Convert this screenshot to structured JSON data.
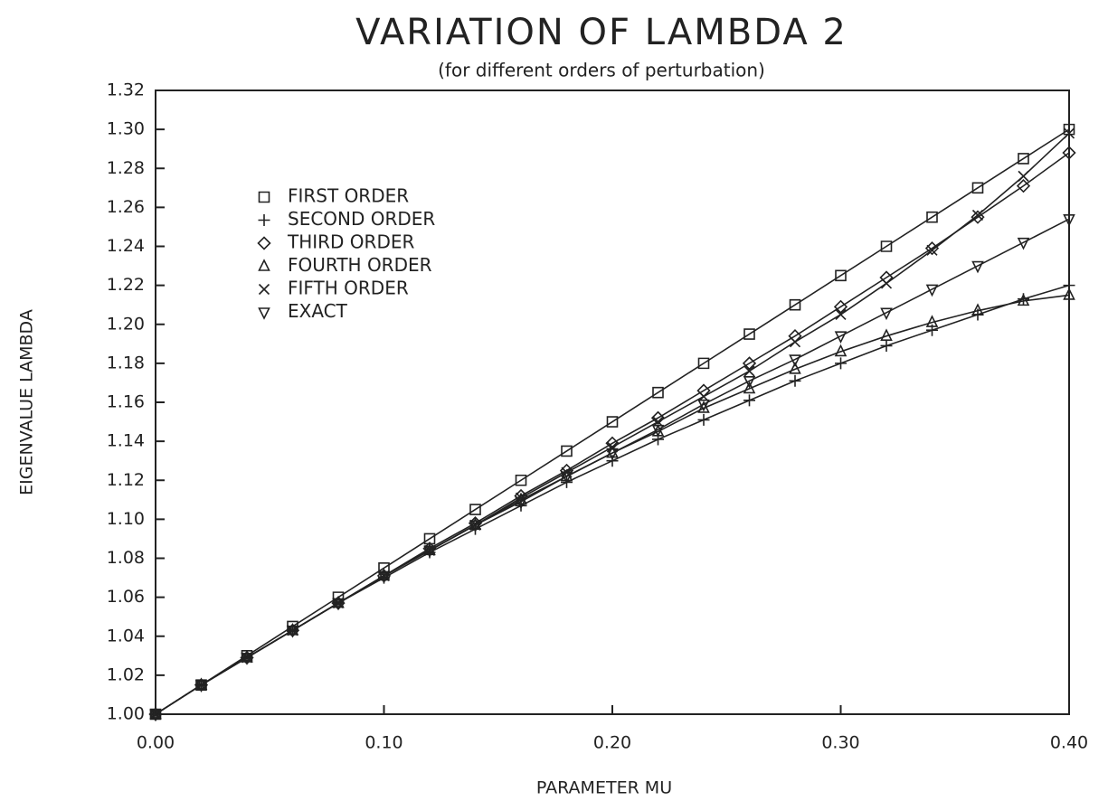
{
  "chart_data": {
    "type": "line",
    "title": "VARIATION OF LAMBDA 2",
    "subtitle": "(for different orders of perturbation)",
    "xlabel": "PARAMETER MU",
    "ylabel": "EIGENVALUE LAMBDA",
    "x": [
      0,
      0.02,
      0.04,
      0.06,
      0.08,
      0.1,
      0.12,
      0.14,
      0.16,
      0.18,
      0.2,
      0.22,
      0.24,
      0.26,
      0.28,
      0.3,
      0.32,
      0.34,
      0.36,
      0.38,
      0.4
    ],
    "series": [
      {
        "name": "FIRST ORDER",
        "marker": "square",
        "color": "#222222",
        "values": [
          1,
          1.015,
          1.03,
          1.045,
          1.06,
          1.075,
          1.09,
          1.105,
          1.12,
          1.135,
          1.15,
          1.165,
          1.18,
          1.195,
          1.21,
          1.225,
          1.24,
          1.255,
          1.27,
          1.285,
          1.3
        ]
      },
      {
        "name": "SECOND ORDER",
        "marker": "plus",
        "color": "#222222",
        "values": [
          1,
          1.015,
          1.029,
          1.043,
          1.057,
          1.07,
          1.083,
          1.095,
          1.107,
          1.119,
          1.13,
          1.141,
          1.151,
          1.161,
          1.171,
          1.18,
          1.189,
          1.197,
          1.205,
          1.213,
          1.22
        ]
      },
      {
        "name": "THIRD ORDER",
        "marker": "diamond",
        "color": "#222222",
        "values": [
          1,
          1.015,
          1.029,
          1.043,
          1.057,
          1.071,
          1.085,
          1.098,
          1.112,
          1.125,
          1.139,
          1.152,
          1.166,
          1.18,
          1.194,
          1.209,
          1.224,
          1.239,
          1.255,
          1.271,
          1.288
        ]
      },
      {
        "name": "FOURTH ORDER",
        "marker": "triangle",
        "color": "#222222",
        "values": [
          1,
          1.015,
          1.029,
          1.043,
          1.057,
          1.071,
          1.084,
          1.097,
          1.11,
          1.122,
          1.134,
          1.145,
          1.157,
          1.167,
          1.177,
          1.186,
          1.194,
          1.201,
          1.207,
          1.212,
          1.215
        ]
      },
      {
        "name": "FIFTH ORDER",
        "marker": "cross",
        "color": "#222222",
        "values": [
          1,
          1.015,
          1.029,
          1.043,
          1.057,
          1.071,
          1.084,
          1.097,
          1.111,
          1.124,
          1.137,
          1.15,
          1.163,
          1.176,
          1.191,
          1.205,
          1.221,
          1.238,
          1.256,
          1.276,
          1.298
        ]
      },
      {
        "name": "EXACT",
        "marker": "invtriangle",
        "color": "#222222",
        "values": [
          1,
          1.015,
          1.029,
          1.043,
          1.057,
          1.071,
          1.084,
          1.097,
          1.109,
          1.122,
          1.134,
          1.146,
          1.159,
          1.171,
          1.182,
          1.194,
          1.206,
          1.218,
          1.23,
          1.242,
          1.254
        ]
      }
    ],
    "xlim": [
      0,
      0.4
    ],
    "xticks": [
      {
        "value": 0,
        "label": "0.00"
      },
      {
        "value": 0.1,
        "label": "0.10"
      },
      {
        "value": 0.2,
        "label": "0.20"
      },
      {
        "value": 0.3,
        "label": "0.30"
      },
      {
        "value": 0.4,
        "label": "0.40"
      }
    ],
    "ylim": [
      1,
      1.32
    ],
    "yticks": [
      {
        "value": 1,
        "label": "1.00"
      },
      {
        "value": 1.02,
        "label": "1.02"
      },
      {
        "value": 1.04,
        "label": "1.04"
      },
      {
        "value": 1.06,
        "label": "1.06"
      },
      {
        "value": 1.08,
        "label": "1.08"
      },
      {
        "value": 1.1,
        "label": "1.10"
      },
      {
        "value": 1.12,
        "label": "1.12"
      },
      {
        "value": 1.14,
        "label": "1.14"
      },
      {
        "value": 1.16,
        "label": "1.16"
      },
      {
        "value": 1.18,
        "label": "1.18"
      },
      {
        "value": 1.2,
        "label": "1.20"
      },
      {
        "value": 1.22,
        "label": "1.22"
      },
      {
        "value": 1.24,
        "label": "1.24"
      },
      {
        "value": 1.26,
        "label": "1.26"
      },
      {
        "value": 1.28,
        "label": "1.28"
      },
      {
        "value": 1.3,
        "label": "1.30"
      },
      {
        "value": 1.32,
        "label": "1.32"
      }
    ],
    "grid": false,
    "legend": "upper left"
  }
}
